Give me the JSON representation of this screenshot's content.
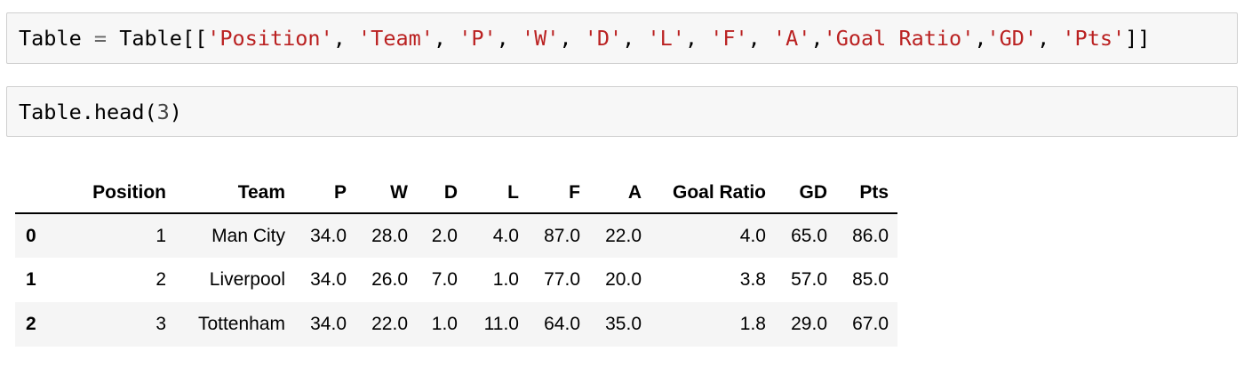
{
  "cells": [
    {
      "tokens": [
        {
          "t": "Table",
          "k": ""
        },
        {
          "t": " ",
          "k": ""
        },
        {
          "t": "=",
          "k": "op"
        },
        {
          "t": " Table[[",
          "k": ""
        },
        {
          "t": "'Position'",
          "k": "str"
        },
        {
          "t": ", ",
          "k": ""
        },
        {
          "t": "'Team'",
          "k": "str"
        },
        {
          "t": ", ",
          "k": ""
        },
        {
          "t": "'P'",
          "k": "str"
        },
        {
          "t": ", ",
          "k": ""
        },
        {
          "t": "'W'",
          "k": "str"
        },
        {
          "t": ", ",
          "k": ""
        },
        {
          "t": "'D'",
          "k": "str"
        },
        {
          "t": ", ",
          "k": ""
        },
        {
          "t": "'L'",
          "k": "str"
        },
        {
          "t": ", ",
          "k": ""
        },
        {
          "t": "'F'",
          "k": "str"
        },
        {
          "t": ", ",
          "k": ""
        },
        {
          "t": "'A'",
          "k": "str"
        },
        {
          "t": ",",
          "k": ""
        },
        {
          "t": "'Goal Ratio'",
          "k": "str"
        },
        {
          "t": ",",
          "k": ""
        },
        {
          "t": "'GD'",
          "k": "str"
        },
        {
          "t": ", ",
          "k": ""
        },
        {
          "t": "'Pts'",
          "k": "str"
        },
        {
          "t": "]]",
          "k": ""
        }
      ]
    },
    {
      "tokens": [
        {
          "t": "Table.head(",
          "k": ""
        },
        {
          "t": "3",
          "k": "num"
        },
        {
          "t": ")",
          "k": ""
        }
      ]
    }
  ],
  "output": {
    "columns": [
      "",
      "Position",
      "Team",
      "P",
      "W",
      "D",
      "L",
      "F",
      "A",
      "Goal Ratio",
      "GD",
      "Pts"
    ],
    "rows": [
      [
        "0",
        "1",
        "Man City",
        "34.0",
        "28.0",
        "2.0",
        "4.0",
        "87.0",
        "22.0",
        "4.0",
        "65.0",
        "86.0"
      ],
      [
        "1",
        "2",
        "Liverpool",
        "34.0",
        "26.0",
        "7.0",
        "1.0",
        "77.0",
        "20.0",
        "3.8",
        "57.0",
        "85.0"
      ],
      [
        "2",
        "3",
        "Tottenham",
        "34.0",
        "22.0",
        "1.0",
        "11.0",
        "64.0",
        "35.0",
        "1.8",
        "29.0",
        "67.0"
      ]
    ]
  }
}
